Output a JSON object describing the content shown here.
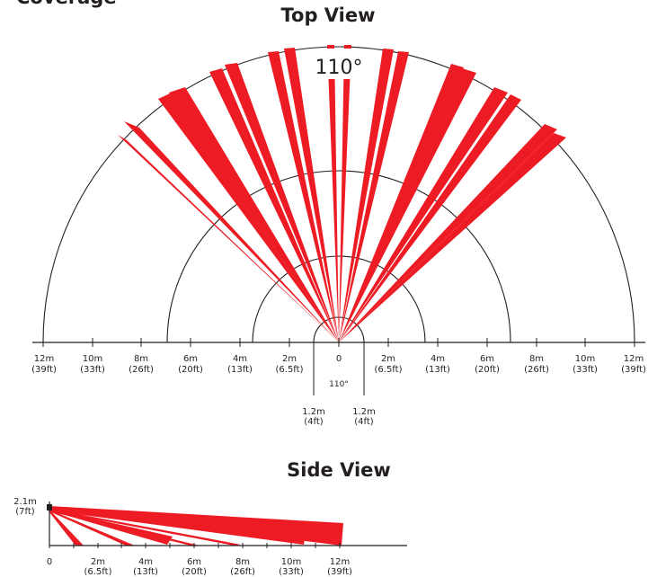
{
  "header": {
    "partial_text": "Coverage"
  },
  "top_view": {
    "title": "Top View",
    "angle_label": "110°",
    "center_angle_label": "110°",
    "ranges_m": [
      2,
      7,
      12
    ],
    "inner_range_m": 1.2,
    "tick_labels_left": [
      {
        "m": "12m",
        "ft": "(39ft)"
      },
      {
        "m": "10m",
        "ft": "(33ft)"
      },
      {
        "m": "8m",
        "ft": "(26ft)"
      },
      {
        "m": "6m",
        "ft": "(20ft)"
      },
      {
        "m": "4m",
        "ft": "(13ft)"
      },
      {
        "m": "2m",
        "ft": "(6.5ft)"
      }
    ],
    "zero_label": "0",
    "tick_labels_right": [
      {
        "m": "2m",
        "ft": "(6.5ft)"
      },
      {
        "m": "4m",
        "ft": "(13ft)"
      },
      {
        "m": "6m",
        "ft": "(20ft)"
      },
      {
        "m": "8m",
        "ft": "(26ft)"
      },
      {
        "m": "10m",
        "ft": "(33ft)"
      },
      {
        "m": "12m",
        "ft": "(39ft)"
      }
    ],
    "near_labels": [
      {
        "m": "1.2m",
        "ft": "(4ft)"
      },
      {
        "m": "1.2m",
        "ft": "(4ft)"
      }
    ]
  },
  "side_view": {
    "title": "Side View",
    "height_label": {
      "m": "2.1m",
      "ft": "(7ft)"
    },
    "zero_label": "0",
    "tick_labels": [
      {
        "m": "2m",
        "ft": "(6.5ft)"
      },
      {
        "m": "4m",
        "ft": "(13ft)"
      },
      {
        "m": "6m",
        "ft": "(20ft)"
      },
      {
        "m": "8m",
        "ft": "(26ft)"
      },
      {
        "m": "10m",
        "ft": "(33ft)"
      },
      {
        "m": "12m",
        "ft": "(39ft)"
      }
    ]
  },
  "colors": {
    "beam": "#ed1c24",
    "line": "#231f20"
  }
}
